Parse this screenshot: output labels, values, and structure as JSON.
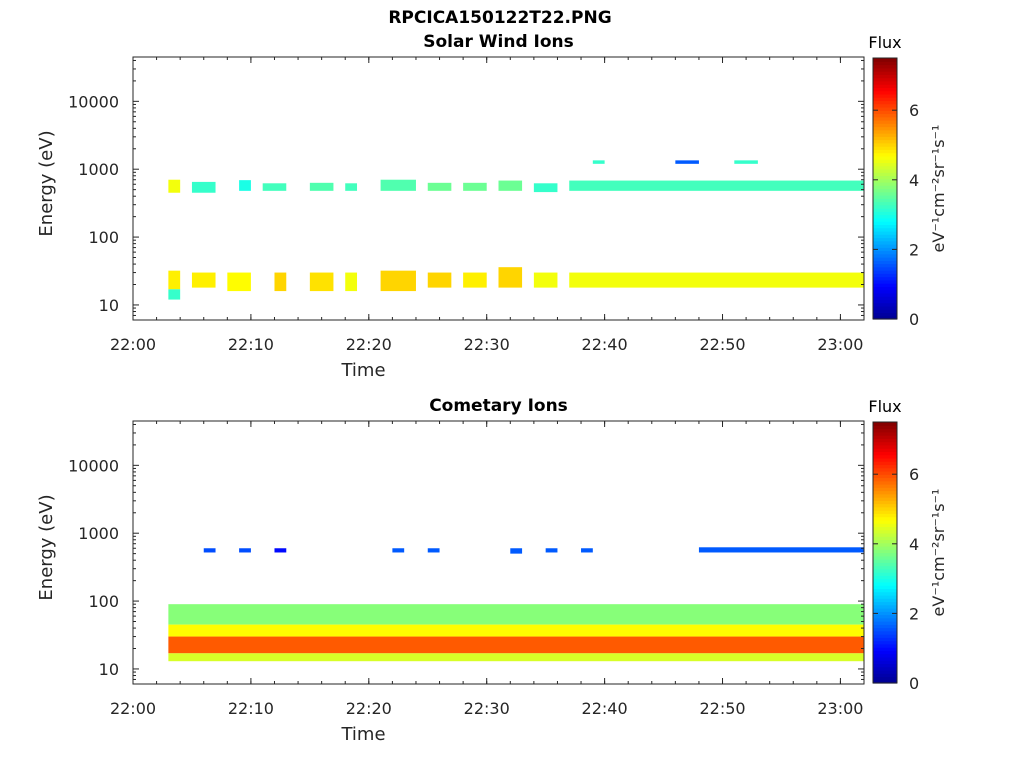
{
  "figure_title": "RPCICA150122T22.PNG",
  "colorbar": {
    "title": "Flux",
    "unit_label": "eV⁻¹cm⁻²sr⁻¹s⁻¹",
    "ticks": [
      "0",
      "2",
      "4",
      "6"
    ],
    "range": [
      0,
      7.5
    ]
  },
  "colorscale": [
    "#00008f",
    "#0000ff",
    "#0080ff",
    "#00ffff",
    "#80ff80",
    "#ffff00",
    "#ff8000",
    "#ff0000",
    "#800000"
  ],
  "chart_data": [
    {
      "type": "heatmap",
      "title": "Solar Wind Ions",
      "xlabel": "Time",
      "ylabel": "Energy (eV)",
      "yscale": "log",
      "ylim": [
        6,
        45000
      ],
      "xlim": [
        "22:00",
        "23:02"
      ],
      "xticks": [
        "22:00",
        "22:10",
        "22:20",
        "22:30",
        "22:40",
        "22:50",
        "23:00"
      ],
      "yticks": [
        "10",
        "100",
        "1000",
        "10000"
      ],
      "cells": [
        {
          "t0": "22:03",
          "t1": "22:04",
          "e0": 450,
          "e1": 700,
          "flux": 4.6
        },
        {
          "t0": "22:03",
          "t1": "22:04",
          "e0": 17,
          "e1": 32,
          "flux": 4.8
        },
        {
          "t0": "22:03",
          "t1": "22:04",
          "e0": 12,
          "e1": 17,
          "flux": 3.2
        },
        {
          "t0": "22:05",
          "t1": "22:07",
          "e0": 450,
          "e1": 650,
          "flux": 3.2
        },
        {
          "t0": "22:05",
          "t1": "22:07",
          "e0": 18,
          "e1": 30,
          "flux": 4.8
        },
        {
          "t0": "22:09",
          "t1": "22:10",
          "e0": 480,
          "e1": 690,
          "flux": 3.0
        },
        {
          "t0": "22:08",
          "t1": "22:10",
          "e0": 16,
          "e1": 30,
          "flux": 4.7
        },
        {
          "t0": "22:11",
          "t1": "22:13",
          "e0": 480,
          "e1": 620,
          "flux": 3.3
        },
        {
          "t0": "22:12",
          "t1": "22:13",
          "e0": 16,
          "e1": 30,
          "flux": 5.0
        },
        {
          "t0": "22:15",
          "t1": "22:17",
          "e0": 480,
          "e1": 630,
          "flux": 3.4
        },
        {
          "t0": "22:15",
          "t1": "22:17",
          "e0": 16,
          "e1": 30,
          "flux": 4.9
        },
        {
          "t0": "22:18",
          "t1": "22:19",
          "e0": 480,
          "e1": 620,
          "flux": 3.3
        },
        {
          "t0": "22:18",
          "t1": "22:19",
          "e0": 16,
          "e1": 30,
          "flux": 4.6
        },
        {
          "t0": "22:21",
          "t1": "22:24",
          "e0": 480,
          "e1": 700,
          "flux": 3.4
        },
        {
          "t0": "22:21",
          "t1": "22:24",
          "e0": 16,
          "e1": 32,
          "flux": 5.0
        },
        {
          "t0": "22:25",
          "t1": "22:27",
          "e0": 480,
          "e1": 630,
          "flux": 3.6
        },
        {
          "t0": "22:25",
          "t1": "22:27",
          "e0": 18,
          "e1": 30,
          "flux": 5.0
        },
        {
          "t0": "22:28",
          "t1": "22:30",
          "e0": 480,
          "e1": 630,
          "flux": 3.6
        },
        {
          "t0": "22:28",
          "t1": "22:30",
          "e0": 18,
          "e1": 30,
          "flux": 4.8
        },
        {
          "t0": "22:31",
          "t1": "22:33",
          "e0": 480,
          "e1": 680,
          "flux": 3.6
        },
        {
          "t0": "22:31",
          "t1": "22:33",
          "e0": 18,
          "e1": 36,
          "flux": 5.0
        },
        {
          "t0": "22:34",
          "t1": "22:36",
          "e0": 460,
          "e1": 620,
          "flux": 3.2
        },
        {
          "t0": "22:34",
          "t1": "22:36",
          "e0": 18,
          "e1": 30,
          "flux": 4.6
        },
        {
          "t0": "22:37",
          "t1": "23:02",
          "e0": 480,
          "e1": 680,
          "flux": 3.3
        },
        {
          "t0": "22:37",
          "t1": "23:02",
          "e0": 18,
          "e1": 30,
          "flux": 4.6
        },
        {
          "t0": "22:39",
          "t1": "22:40",
          "e0": 1200,
          "e1": 1350,
          "flux": 3.2
        },
        {
          "t0": "22:46",
          "t1": "22:48",
          "e0": 1200,
          "e1": 1350,
          "flux": 1.6
        },
        {
          "t0": "22:51",
          "t1": "22:53",
          "e0": 1200,
          "e1": 1350,
          "flux": 3.2
        }
      ]
    },
    {
      "type": "heatmap",
      "title": "Cometary Ions",
      "xlabel": "Time",
      "ylabel": "Energy (eV)",
      "yscale": "log",
      "ylim": [
        6,
        45000
      ],
      "xlim": [
        "22:00",
        "23:02"
      ],
      "xticks": [
        "22:00",
        "22:10",
        "22:20",
        "22:30",
        "22:40",
        "22:50",
        "23:00"
      ],
      "yticks": [
        "10",
        "100",
        "1000",
        "10000"
      ],
      "cells": [
        {
          "t0": "22:06",
          "t1": "22:07",
          "e0": 520,
          "e1": 600,
          "flux": 1.5
        },
        {
          "t0": "22:09",
          "t1": "22:10",
          "e0": 520,
          "e1": 600,
          "flux": 1.5
        },
        {
          "t0": "22:12",
          "t1": "22:13",
          "e0": 520,
          "e1": 600,
          "flux": 1.0
        },
        {
          "t0": "22:22",
          "t1": "22:23",
          "e0": 520,
          "e1": 600,
          "flux": 1.6
        },
        {
          "t0": "22:25",
          "t1": "22:26",
          "e0": 520,
          "e1": 600,
          "flux": 1.6
        },
        {
          "t0": "22:32",
          "t1": "22:33",
          "e0": 500,
          "e1": 600,
          "flux": 1.6
        },
        {
          "t0": "22:35",
          "t1": "22:36",
          "e0": 520,
          "e1": 600,
          "flux": 1.6
        },
        {
          "t0": "22:38",
          "t1": "22:39",
          "e0": 520,
          "e1": 600,
          "flux": 1.6
        },
        {
          "t0": "22:48",
          "t1": "23:02",
          "e0": 520,
          "e1": 620,
          "flux": 1.6
        },
        {
          "t0": "22:03",
          "t1": "23:02",
          "e0": 45,
          "e1": 90,
          "flux": 3.8
        },
        {
          "t0": "22:03",
          "t1": "23:02",
          "e0": 30,
          "e1": 45,
          "flux": 4.7
        },
        {
          "t0": "22:03",
          "t1": "23:02",
          "e0": 17,
          "e1": 30,
          "flux": 5.9
        },
        {
          "t0": "22:03",
          "t1": "23:02",
          "e0": 13,
          "e1": 17,
          "flux": 4.4
        }
      ]
    }
  ]
}
